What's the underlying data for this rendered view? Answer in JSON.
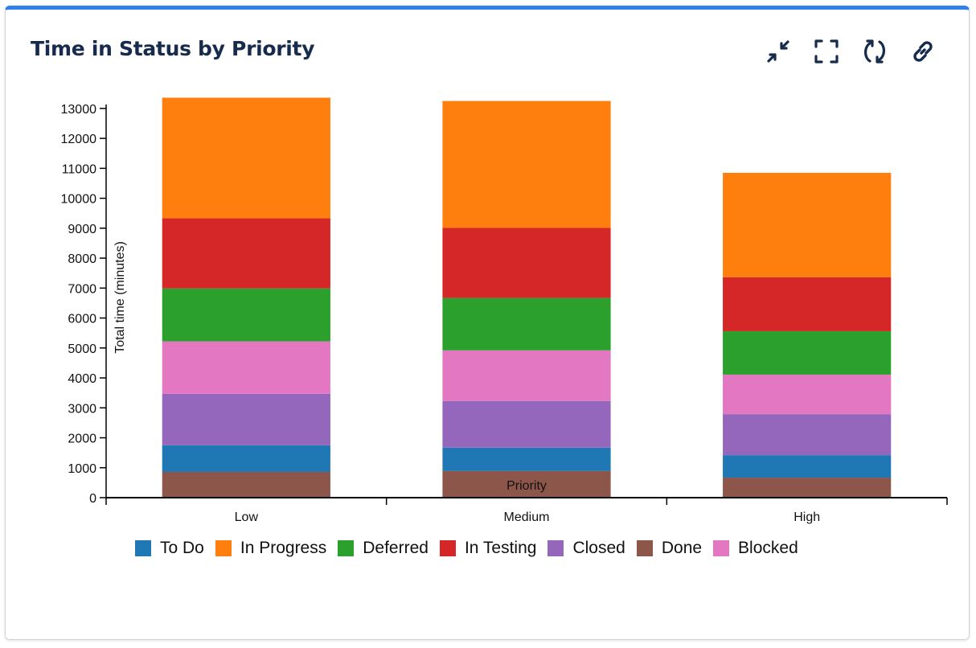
{
  "header": {
    "title": "Time in Status by Priority",
    "icons": [
      "collapse-icon",
      "fullscreen-icon",
      "refresh-icon",
      "link-icon"
    ]
  },
  "chart_data": {
    "type": "bar",
    "stacked": true,
    "title": "",
    "xlabel": "Priority",
    "ylabel": "Total time (minutes)",
    "ylim": [
      0,
      13400
    ],
    "yticks": [
      0,
      1000,
      2000,
      3000,
      4000,
      5000,
      6000,
      7000,
      8000,
      9000,
      10000,
      11000,
      12000,
      13000
    ],
    "grid": false,
    "legend_position": "bottom",
    "categories": [
      "Low",
      "Medium",
      "High"
    ],
    "stack_order": [
      "Done",
      "To Do",
      "Closed",
      "Blocked",
      "Deferred",
      "In Testing",
      "In Progress"
    ],
    "series": [
      {
        "name": "To Do",
        "color": "#1f77b4",
        "values": [
          890,
          780,
          750
        ]
      },
      {
        "name": "In Progress",
        "color": "#ff7f0e",
        "values": [
          4030,
          4240,
          3490
        ]
      },
      {
        "name": "Deferred",
        "color": "#2ca02c",
        "values": [
          1770,
          1750,
          1450
        ]
      },
      {
        "name": "In Testing",
        "color": "#d62728",
        "values": [
          2340,
          2340,
          1800
        ]
      },
      {
        "name": "Closed",
        "color": "#9467bd",
        "values": [
          1720,
          1560,
          1370
        ]
      },
      {
        "name": "Done",
        "color": "#8c564b",
        "values": [
          860,
          890,
          670
        ]
      },
      {
        "name": "Blocked",
        "color": "#e377c2",
        "values": [
          1750,
          1690,
          1320
        ]
      }
    ]
  }
}
